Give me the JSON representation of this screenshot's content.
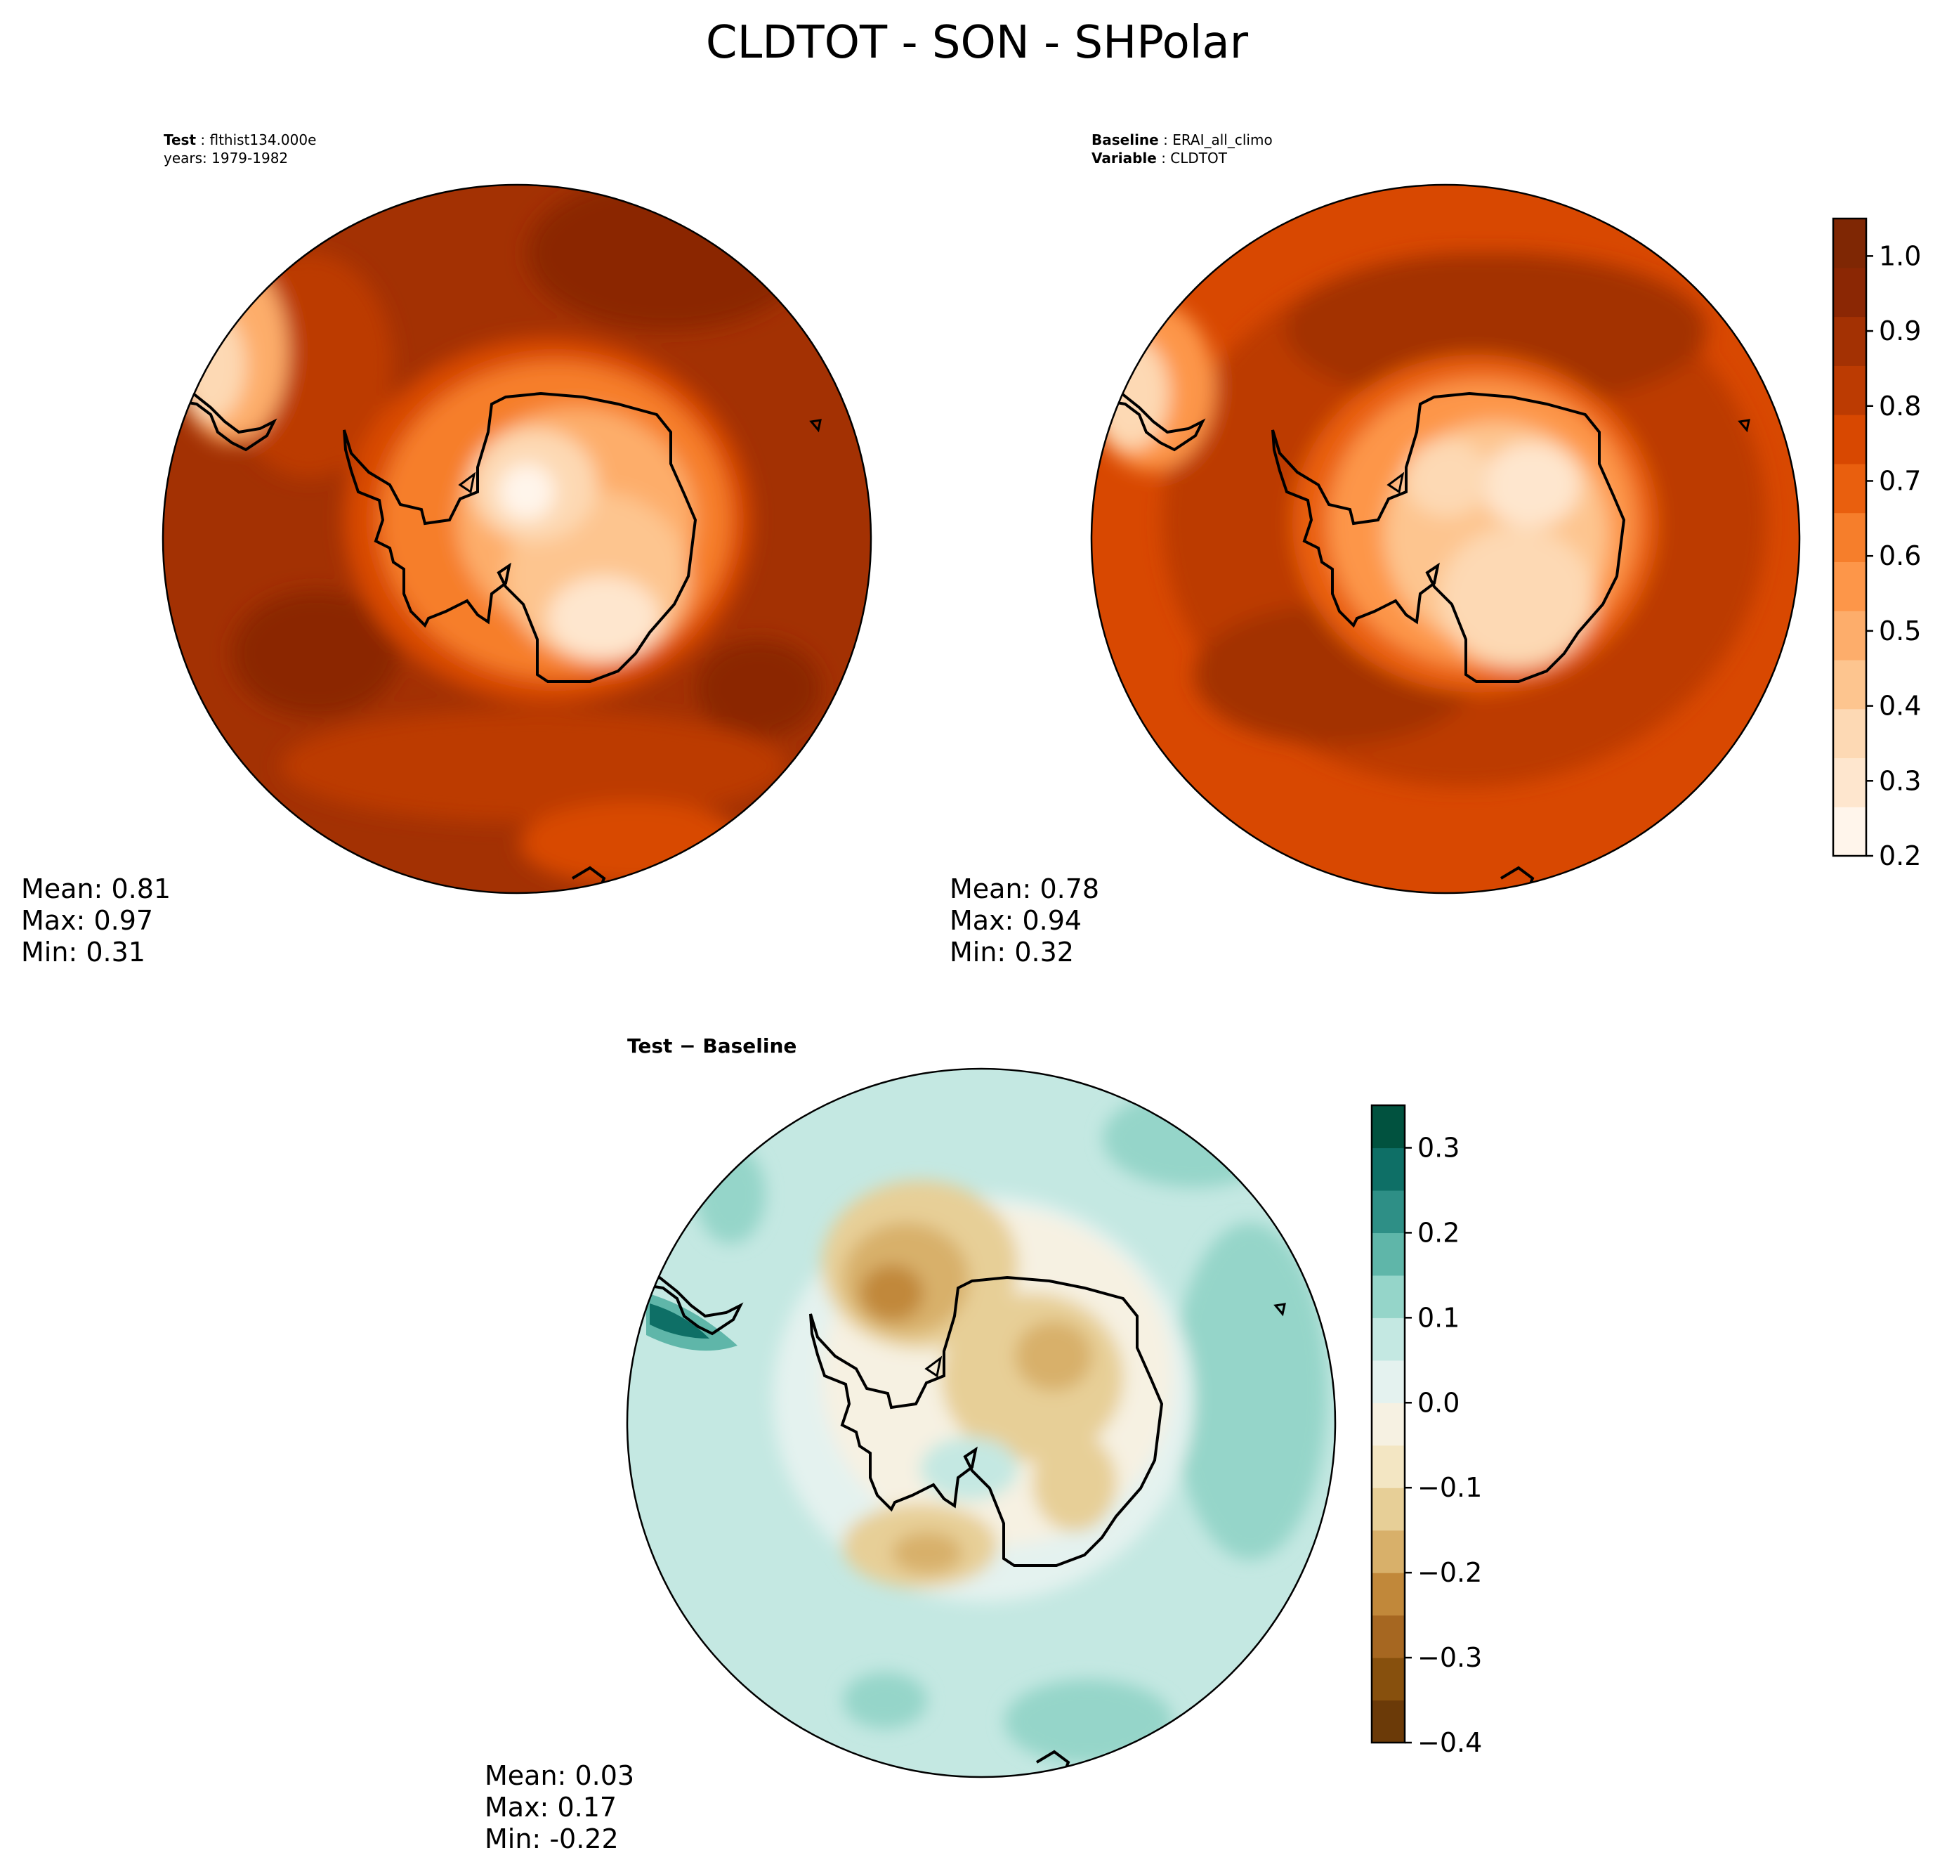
{
  "figure": {
    "title": "CLDTOT - SON - SHPolar"
  },
  "chart_data": [
    {
      "type": "heatmap",
      "panel": "test",
      "projection": "south-polar-stereographic",
      "header": [
        {
          "bold": "Test",
          "value": "flthist134.000e"
        },
        {
          "bold": "",
          "value": "years: 1979-1982"
        }
      ],
      "stats": [
        {
          "label": "Mean:",
          "value": "0.81"
        },
        {
          "label": "Max:",
          "value": "0.97"
        },
        {
          "label": "Min:",
          "value": "0.31"
        }
      ],
      "colormap": "Oranges",
      "color_range": [
        0.2,
        1.05
      ],
      "field": {
        "antarctica_interior": 0.32,
        "antarctica_edge": 0.55,
        "coast_ring": 0.72,
        "ocean_ring": 0.88,
        "outer": 0.86
      }
    },
    {
      "type": "heatmap",
      "panel": "baseline",
      "projection": "south-polar-stereographic",
      "header": [
        {
          "bold": "Baseline",
          "value": "ERAI_all_climo"
        },
        {
          "bold": "Variable",
          "value": "CLDTOT"
        }
      ],
      "stats": [
        {
          "label": "Mean:",
          "value": "0.78"
        },
        {
          "label": "Max:",
          "value": "0.94"
        },
        {
          "label": "Min:",
          "value": "0.32"
        }
      ],
      "colormap": "Oranges",
      "color_range": [
        0.2,
        1.05
      ],
      "field": {
        "antarctica_interior": 0.38,
        "antarctica_edge": 0.6,
        "coast_ring": 0.74,
        "ocean_ring": 0.9,
        "outer": 0.82
      },
      "colorbar": {
        "ticks": [
          "0.2",
          "0.3",
          "0.4",
          "0.5",
          "0.6",
          "0.7",
          "0.8",
          "0.9",
          "1.0"
        ],
        "tick_values": [
          0.2,
          0.3,
          0.4,
          0.5,
          0.6,
          0.7,
          0.8,
          0.9,
          1.0
        ],
        "min": 0.2,
        "max": 1.05,
        "colors": [
          "#fff5eb",
          "#fee6ce",
          "#fdd9b4",
          "#fdc58f",
          "#fdad6b",
          "#fd9649",
          "#f67e2b",
          "#e95f0e",
          "#d84801",
          "#bc3b02",
          "#a33103",
          "#8b2704",
          "#7f2704"
        ]
      }
    },
    {
      "type": "heatmap",
      "panel": "difference",
      "projection": "south-polar-stereographic",
      "header": [
        {
          "bold": "Test − Baseline",
          "value": ""
        }
      ],
      "stats": [
        {
          "label": "Mean:",
          "value": "0.03"
        },
        {
          "label": "Max:",
          "value": "0.17"
        },
        {
          "label": "Min:",
          "value": "-0.22"
        }
      ],
      "colormap": "BrBG",
      "color_range": [
        -0.4,
        0.35
      ],
      "colorbar": {
        "ticks": [
          "−0.4",
          "−0.3",
          "−0.2",
          "−0.1",
          "0.0",
          "0.1",
          "0.2",
          "0.3"
        ],
        "tick_values": [
          -0.4,
          -0.3,
          -0.2,
          -0.1,
          0.0,
          0.1,
          0.2,
          0.3
        ],
        "min": -0.4,
        "max": 0.35,
        "colors": [
          "#6b3a08",
          "#87500d",
          "#a66721",
          "#c1883a",
          "#d8b06a",
          "#e7cf97",
          "#f3e6c3",
          "#f6f1e2",
          "#e4f2ef",
          "#c4e8e2",
          "#95d5c9",
          "#5fb6a9",
          "#2e8f86",
          "#0e6f66",
          "#01523f"
        ]
      }
    }
  ]
}
